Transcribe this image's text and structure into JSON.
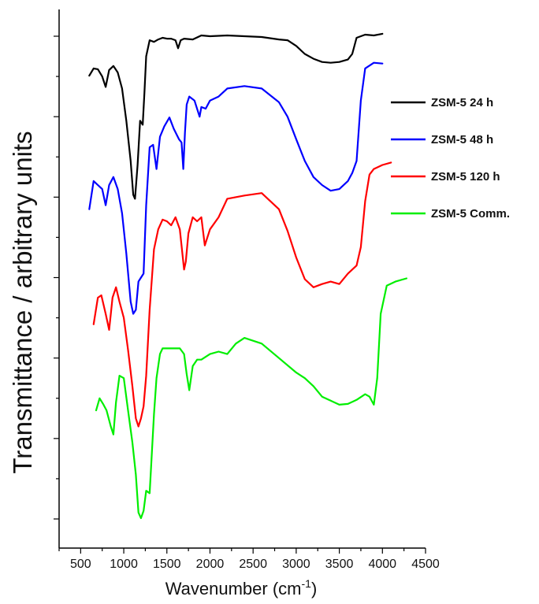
{
  "chart_data": {
    "type": "line",
    "title": "",
    "xlabel_main": "Wavenumber (cm",
    "xlabel_sup": "-1",
    "xlabel_close": ")",
    "ylabel": "Transmittance / arbitrary units",
    "xlim": [
      250,
      4500
    ],
    "xticks": [
      500,
      1000,
      1500,
      2000,
      2500,
      3000,
      3500,
      4000,
      4500
    ],
    "xtick_labels": [
      "500",
      "1000",
      "1500",
      "2000",
      "2500",
      "3000",
      "3500",
      "4000",
      "4500"
    ],
    "ylim": [
      0,
      6.5
    ],
    "y_ticks_unlabeled": [
      0,
      1,
      2,
      3,
      4,
      5,
      6
    ],
    "grid": false,
    "legend_position": "right",
    "series": [
      {
        "name": "ZSM-5 24 h",
        "color": "#000000",
        "x": [
          600,
          650,
          700,
          750,
          790,
          830,
          880,
          930,
          980,
          1030,
          1080,
          1110,
          1130,
          1160,
          1190,
          1220,
          1240,
          1260,
          1300,
          1350,
          1400,
          1450,
          1500,
          1550,
          1600,
          1630,
          1660,
          1700,
          1800,
          1900,
          2000,
          2200,
          2400,
          2600,
          2800,
          2900,
          3000,
          3100,
          3200,
          3300,
          3400,
          3500,
          3600,
          3650,
          3700,
          3800,
          3900,
          4000
        ],
        "y": [
          5.51,
          5.6,
          5.59,
          5.5,
          5.37,
          5.58,
          5.63,
          5.55,
          5.35,
          4.95,
          4.45,
          4.03,
          3.98,
          4.4,
          4.95,
          4.9,
          5.3,
          5.75,
          5.95,
          5.93,
          5.96,
          5.98,
          5.97,
          5.97,
          5.95,
          5.85,
          5.95,
          5.97,
          5.96,
          6.01,
          6.0,
          6.01,
          6.0,
          5.99,
          5.96,
          5.95,
          5.88,
          5.78,
          5.72,
          5.68,
          5.67,
          5.68,
          5.71,
          5.78,
          5.98,
          6.02,
          6.01,
          6.03
        ]
      },
      {
        "name": "ZSM-5 48 h",
        "color": "#0000ff",
        "x": [
          600,
          650,
          700,
          750,
          790,
          830,
          880,
          930,
          980,
          1030,
          1080,
          1110,
          1140,
          1170,
          1200,
          1230,
          1260,
          1300,
          1340,
          1380,
          1420,
          1470,
          1530,
          1580,
          1640,
          1670,
          1690,
          1710,
          1730,
          1760,
          1820,
          1880,
          1900,
          1950,
          2000,
          2100,
          2200,
          2400,
          2600,
          2800,
          2900,
          3000,
          3100,
          3200,
          3300,
          3400,
          3500,
          3600,
          3650,
          3700,
          3750,
          3800,
          3900,
          4000
        ],
        "y": [
          3.85,
          4.2,
          4.15,
          4.1,
          3.9,
          4.15,
          4.25,
          4.1,
          3.8,
          3.3,
          2.7,
          2.55,
          2.6,
          2.95,
          3.0,
          3.05,
          3.9,
          4.62,
          4.65,
          4.35,
          4.75,
          4.88,
          4.99,
          4.85,
          4.72,
          4.68,
          4.35,
          4.8,
          5.15,
          5.25,
          5.2,
          5.0,
          5.12,
          5.1,
          5.2,
          5.25,
          5.35,
          5.38,
          5.35,
          5.18,
          5.0,
          4.72,
          4.45,
          4.25,
          4.15,
          4.08,
          4.1,
          4.2,
          4.3,
          4.45,
          5.2,
          5.6,
          5.67,
          5.66
        ]
      },
      {
        "name": "ZSM-5 120 h",
        "color": "#ff0000",
        "x": [
          650,
          700,
          740,
          790,
          830,
          870,
          910,
          950,
          1000,
          1050,
          1100,
          1140,
          1170,
          1200,
          1230,
          1260,
          1300,
          1350,
          1400,
          1450,
          1500,
          1550,
          1600,
          1650,
          1700,
          1720,
          1750,
          1800,
          1850,
          1900,
          1940,
          2000,
          2100,
          2200,
          2400,
          2600,
          2800,
          2900,
          3000,
          3100,
          3200,
          3300,
          3400,
          3500,
          3600,
          3700,
          3750,
          3800,
          3850,
          3900,
          4000,
          4100
        ],
        "y": [
          2.42,
          2.75,
          2.78,
          2.55,
          2.35,
          2.75,
          2.88,
          2.7,
          2.5,
          2.1,
          1.65,
          1.25,
          1.15,
          1.25,
          1.4,
          1.78,
          2.6,
          3.35,
          3.6,
          3.72,
          3.7,
          3.65,
          3.75,
          3.6,
          3.1,
          3.2,
          3.55,
          3.75,
          3.7,
          3.75,
          3.4,
          3.6,
          3.75,
          3.98,
          4.02,
          4.05,
          3.85,
          3.58,
          3.25,
          2.98,
          2.88,
          2.92,
          2.95,
          2.92,
          3.05,
          3.15,
          3.38,
          3.95,
          4.28,
          4.35,
          4.4,
          4.43
        ]
      },
      {
        "name": "ZSM-5 Comm.",
        "color": "#00ee00",
        "x": [
          680,
          720,
          760,
          800,
          850,
          880,
          910,
          950,
          1000,
          1050,
          1100,
          1140,
          1170,
          1200,
          1230,
          1260,
          1300,
          1350,
          1380,
          1420,
          1450,
          1500,
          1550,
          1600,
          1650,
          1700,
          1730,
          1760,
          1800,
          1850,
          1900,
          2000,
          2100,
          2200,
          2300,
          2400,
          2600,
          2800,
          3000,
          3100,
          3200,
          3300,
          3400,
          3500,
          3600,
          3700,
          3800,
          3850,
          3900,
          3940,
          3980,
          4050,
          4150,
          4280
        ],
        "y": [
          1.35,
          1.5,
          1.43,
          1.35,
          1.15,
          1.05,
          1.45,
          1.78,
          1.75,
          1.35,
          0.95,
          0.55,
          0.08,
          0.01,
          0.1,
          0.35,
          0.32,
          1.3,
          1.75,
          2.05,
          2.12,
          2.12,
          2.12,
          2.12,
          2.12,
          2.05,
          1.8,
          1.6,
          1.9,
          1.98,
          1.98,
          2.05,
          2.08,
          2.05,
          2.18,
          2.25,
          2.18,
          2.0,
          1.82,
          1.75,
          1.65,
          1.52,
          1.47,
          1.42,
          1.43,
          1.48,
          1.55,
          1.52,
          1.42,
          1.75,
          2.55,
          2.9,
          2.95,
          2.99
        ]
      }
    ]
  }
}
